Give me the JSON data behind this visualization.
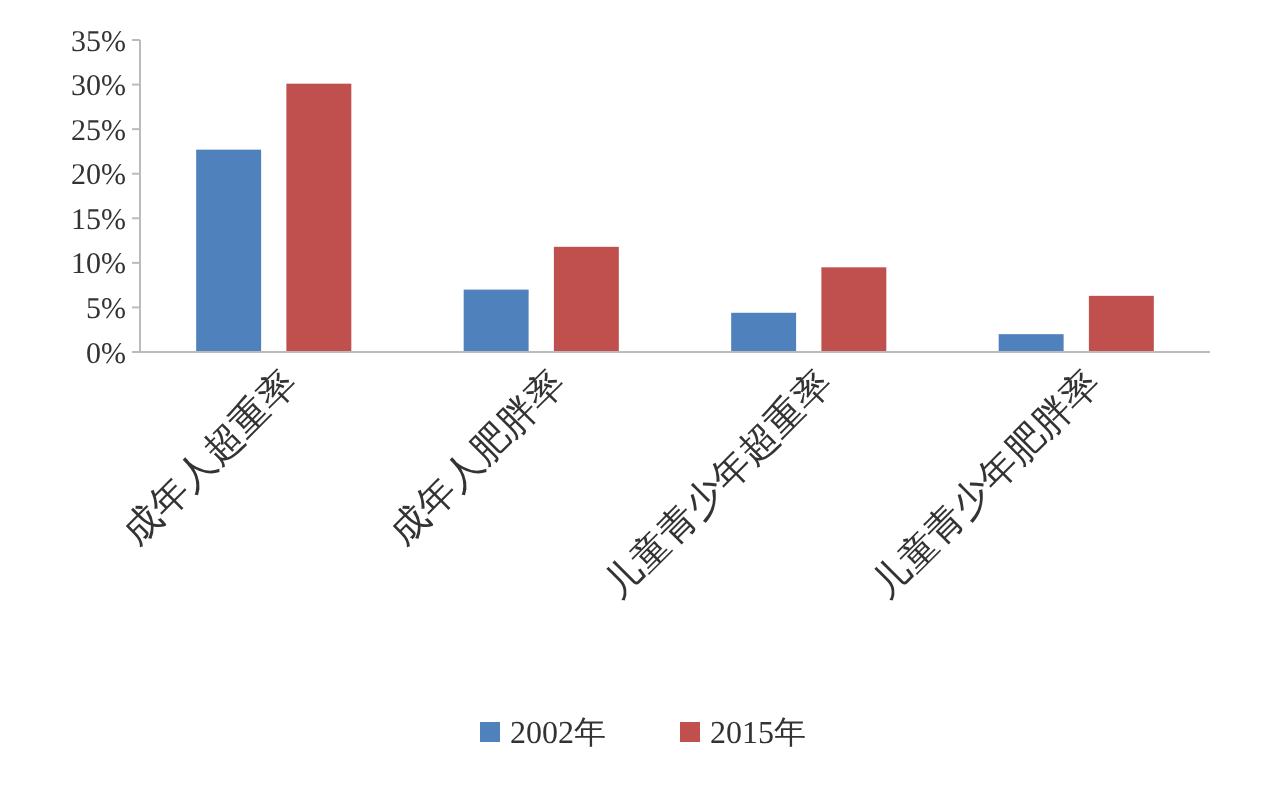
{
  "chart_data": {
    "type": "bar",
    "categories": [
      "成年人超重率",
      "成年人肥胖率",
      "儿童青少年超重率",
      "儿童青少年肥胖率"
    ],
    "series": [
      {
        "name": "2002年",
        "color": "#4f81bd",
        "values": [
          22.7,
          7.0,
          4.4,
          2.0
        ]
      },
      {
        "name": "2015年",
        "color": "#c0504d",
        "values": [
          30.1,
          11.8,
          9.5,
          6.3
        ]
      }
    ],
    "ylim": [
      0,
      35
    ],
    "yticks": [
      {
        "value": 0,
        "label": "0%"
      },
      {
        "value": 5,
        "label": "5%"
      },
      {
        "value": 10,
        "label": "10%"
      },
      {
        "value": 15,
        "label": "15%"
      },
      {
        "value": 20,
        "label": "20%"
      },
      {
        "value": 25,
        "label": "25%"
      },
      {
        "value": 30,
        "label": "30%"
      },
      {
        "value": 35,
        "label": "35%"
      }
    ],
    "grid": false,
    "legend": "bottom"
  }
}
